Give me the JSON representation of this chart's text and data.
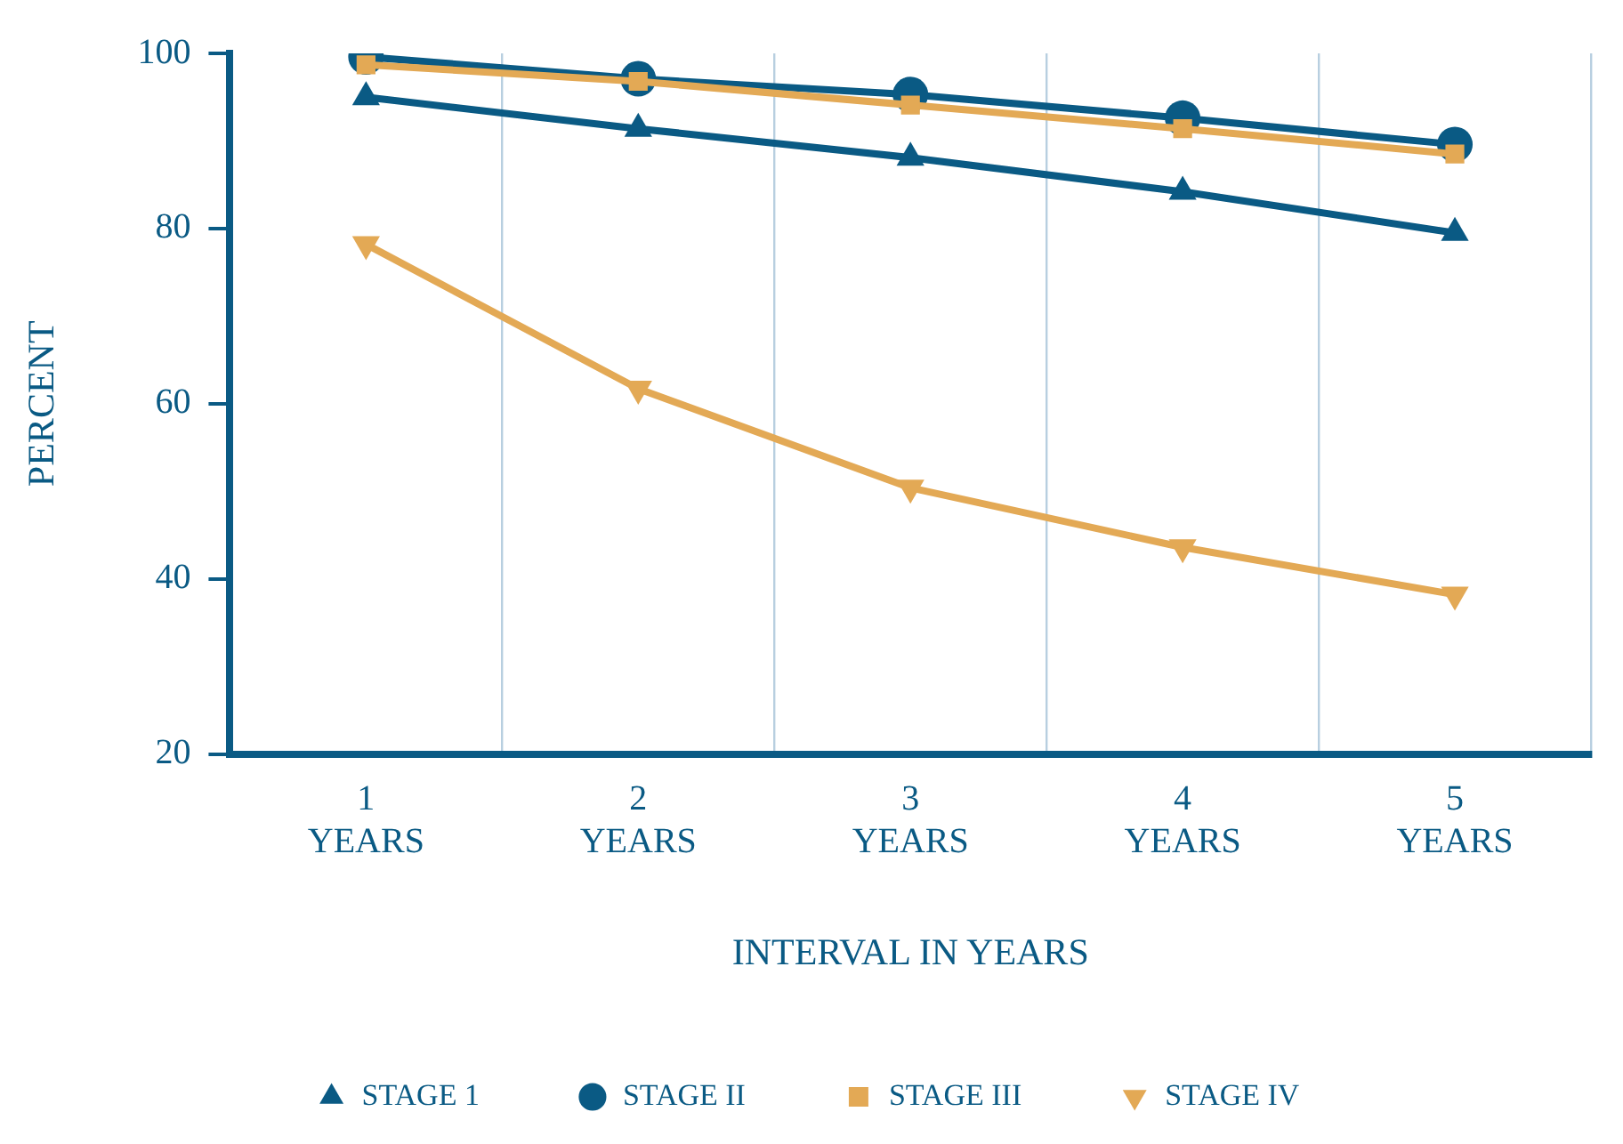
{
  "chart_data": {
    "type": "line",
    "xlabel": "INTERVAL IN YEARS",
    "ylabel": "PERCENT",
    "categories": [
      "1\nYEARS",
      "2\nYEARS",
      "3\nYEARS",
      "4\nYEARS",
      "5\nYEARS"
    ],
    "series": [
      {
        "name": "STAGE 1",
        "color": "#0a5a84",
        "marker": "triangle",
        "values": [
          95,
          91.4,
          88.1,
          84.2,
          79.5
        ]
      },
      {
        "name": "STAGE II",
        "color": "#0a5a84",
        "marker": "circle",
        "values": [
          99.6,
          97.1,
          95.3,
          92.6,
          89.6
        ]
      },
      {
        "name": "STAGE III",
        "color": "#e3a955",
        "marker": "square",
        "values": [
          98.7,
          96.8,
          94.1,
          91.4,
          88.5
        ]
      },
      {
        "name": "STAGE IV",
        "color": "#e3a955",
        "marker": "triangle-down",
        "values": [
          78.2,
          61.7,
          50.4,
          43.6,
          38.2
        ]
      }
    ],
    "ylim": [
      20,
      100
    ],
    "yticks": [
      20,
      40,
      60,
      80,
      100
    ],
    "grid": "x",
    "legend": "bottom"
  }
}
